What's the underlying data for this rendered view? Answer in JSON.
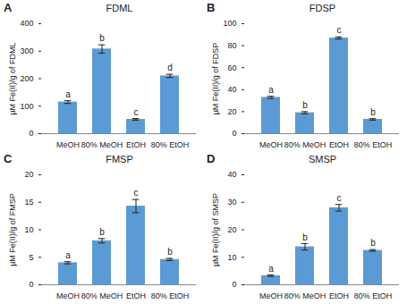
{
  "chart_data": [
    {
      "type": "bar",
      "panel_label": "A",
      "title": "FDML",
      "y_label": "µM Fe(II)/g of FDML",
      "categories": [
        "MeOH",
        "80% MeOH",
        "EtOH",
        "80% EtOH"
      ],
      "values": [
        115,
        308,
        52,
        210
      ],
      "errors": [
        5,
        15,
        3,
        6
      ],
      "significance_letters": [
        "a",
        "b",
        "c",
        "d"
      ],
      "color": "#5b9bd5",
      "ylim": [
        0,
        400
      ],
      "yticks": [
        0,
        100,
        200,
        300,
        400
      ]
    },
    {
      "type": "bar",
      "panel_label": "B",
      "title": "FDSP",
      "y_label": "µM Fe(II)/g of FDSP",
      "categories": [
        "MeOH",
        "80% MeOH",
        "EtOH",
        "80% EtOH"
      ],
      "values": [
        33,
        19,
        87,
        13
      ],
      "errors": [
        1,
        1,
        1,
        0.7
      ],
      "significance_letters": [
        "a",
        "b",
        "c",
        "b"
      ],
      "color": "#5b9bd5",
      "ylim": [
        0,
        100
      ],
      "yticks": [
        0,
        20,
        40,
        60,
        80,
        100
      ]
    },
    {
      "type": "bar",
      "panel_label": "C",
      "title": "FMSP",
      "y_label": "µM Fe(II)/g of FMSP",
      "categories": [
        "MeOH",
        "80% MeOH",
        "EtOH",
        "80% EtOH"
      ],
      "values": [
        4,
        8,
        14.3,
        4.6
      ],
      "errors": [
        0.2,
        0.4,
        1.2,
        0.2
      ],
      "significance_letters": [
        "a",
        "b",
        "c",
        "b"
      ],
      "color": "#5b9bd5",
      "ylim": [
        0,
        20
      ],
      "yticks": [
        0,
        5,
        10,
        15,
        20
      ]
    },
    {
      "type": "bar",
      "panel_label": "D",
      "title": "SMSP",
      "y_label": "µM Fe(II)/g of SMSP",
      "categories": [
        "MeOH",
        "80% MeOH",
        "EtOH",
        "80% EtOH"
      ],
      "values": [
        3.3,
        13.8,
        28,
        12.5
      ],
      "errors": [
        0.3,
        1.2,
        1.2,
        0.3
      ],
      "significance_letters": [
        "a",
        "b",
        "c",
        "b"
      ],
      "color": "#5b9bd5",
      "ylim": [
        0,
        40
      ],
      "yticks": [
        0,
        10,
        20,
        30,
        40
      ]
    }
  ]
}
